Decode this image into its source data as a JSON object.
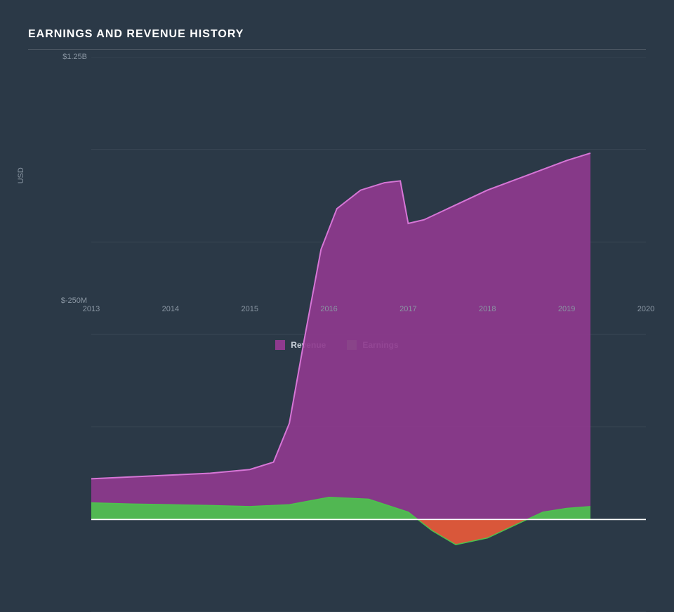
{
  "title": "EARNINGS AND REVENUE HISTORY",
  "chart": {
    "type": "area",
    "background_color": "#2b3947",
    "grid_color": "#3a4754",
    "zero_line_color": "#ffffff",
    "axis_text_color": "#8a96a3",
    "y_axis_label": "USD",
    "y_ticks": [
      {
        "value": 1250,
        "label": "$1.25B"
      },
      {
        "value": -250,
        "label": "$-250M"
      }
    ],
    "y_range": [
      -250,
      1250
    ],
    "y_grid_values": [
      -250,
      0,
      250,
      500,
      750,
      1000,
      1250
    ],
    "x_ticks": [
      {
        "value": 2013,
        "label": "2013"
      },
      {
        "value": 2014,
        "label": "2014"
      },
      {
        "value": 2015,
        "label": "2015"
      },
      {
        "value": 2016,
        "label": "2016"
      },
      {
        "value": 2017,
        "label": "2017"
      },
      {
        "value": 2018,
        "label": "2018"
      },
      {
        "value": 2019,
        "label": "2019"
      },
      {
        "value": 2020,
        "label": "2020"
      }
    ],
    "x_range": [
      2013,
      2020
    ],
    "series": [
      {
        "name": "Revenue",
        "fill_color": "#8e3a8e",
        "stroke_color": "#d676d6",
        "stroke_width": 2,
        "data": [
          {
            "x": 2013.0,
            "y": 110
          },
          {
            "x": 2013.5,
            "y": 115
          },
          {
            "x": 2014.0,
            "y": 120
          },
          {
            "x": 2014.5,
            "y": 125
          },
          {
            "x": 2015.0,
            "y": 135
          },
          {
            "x": 2015.3,
            "y": 155
          },
          {
            "x": 2015.5,
            "y": 260
          },
          {
            "x": 2015.7,
            "y": 500
          },
          {
            "x": 2015.9,
            "y": 730
          },
          {
            "x": 2016.1,
            "y": 840
          },
          {
            "x": 2016.4,
            "y": 890
          },
          {
            "x": 2016.7,
            "y": 910
          },
          {
            "x": 2016.9,
            "y": 915
          },
          {
            "x": 2017.0,
            "y": 800
          },
          {
            "x": 2017.2,
            "y": 810
          },
          {
            "x": 2017.5,
            "y": 840
          },
          {
            "x": 2018.0,
            "y": 890
          },
          {
            "x": 2018.5,
            "y": 930
          },
          {
            "x": 2019.0,
            "y": 970
          },
          {
            "x": 2019.3,
            "y": 990
          }
        ]
      },
      {
        "name": "Earnings",
        "fill_positive_color": "#4dc24d",
        "fill_negative_color": "#e85a3a",
        "stroke_color": "#4dc24d",
        "stroke_width": 1.5,
        "data": [
          {
            "x": 2013.0,
            "y": 45
          },
          {
            "x": 2013.5,
            "y": 42
          },
          {
            "x": 2014.0,
            "y": 40
          },
          {
            "x": 2014.5,
            "y": 38
          },
          {
            "x": 2015.0,
            "y": 35
          },
          {
            "x": 2015.5,
            "y": 40
          },
          {
            "x": 2016.0,
            "y": 60
          },
          {
            "x": 2016.5,
            "y": 55
          },
          {
            "x": 2017.0,
            "y": 20
          },
          {
            "x": 2017.3,
            "y": -30
          },
          {
            "x": 2017.6,
            "y": -68
          },
          {
            "x": 2018.0,
            "y": -50
          },
          {
            "x": 2018.4,
            "y": -10
          },
          {
            "x": 2018.7,
            "y": 20
          },
          {
            "x": 2019.0,
            "y": 30
          },
          {
            "x": 2019.3,
            "y": 35
          }
        ]
      }
    ],
    "legend": [
      {
        "label": "Revenue",
        "color": "#8e3a8e"
      },
      {
        "label": "Earnings",
        "color": "#4dc24d"
      }
    ]
  }
}
